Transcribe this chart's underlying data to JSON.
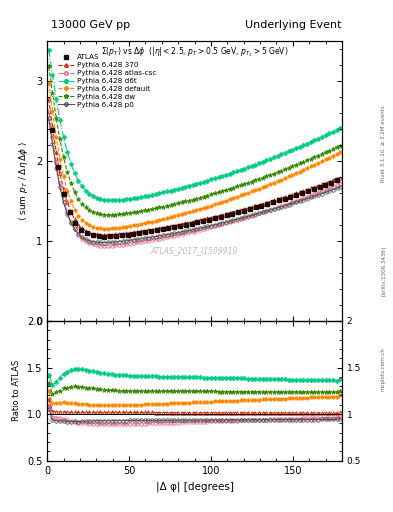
{
  "title_left": "13000 GeV pp",
  "title_right": "Underlying Event",
  "subtitle": "Σ(p_{T}) vs Δφ  (|η| < 2.5, p_{T} > 0.5 GeV, p_{T1} > 5 GeV)",
  "xlabel": "|Δ φ| [degrees]",
  "ylabel_main": "⟨ sum p_T / Δη deltaφ ⟩",
  "ylabel_ratio": "Ratio to ATLAS",
  "watermark": "ATLAS_2017_I1509919",
  "right_label1": "Rivet 3.1.10, ≥ 3.2M events",
  "right_label2": "[arXiv:1306.3436]",
  "right_label3": "mcplots.cern.ch",
  "ylim_main": [
    0.0,
    3.5
  ],
  "ylim_ratio": [
    0.5,
    2.0
  ],
  "xlim": [
    0,
    180
  ],
  "yticks_main": [
    0,
    1,
    2,
    3
  ],
  "yticks_ratio": [
    0.5,
    1.0,
    1.5,
    2.0
  ],
  "xticks": [
    0,
    50,
    100,
    150
  ]
}
